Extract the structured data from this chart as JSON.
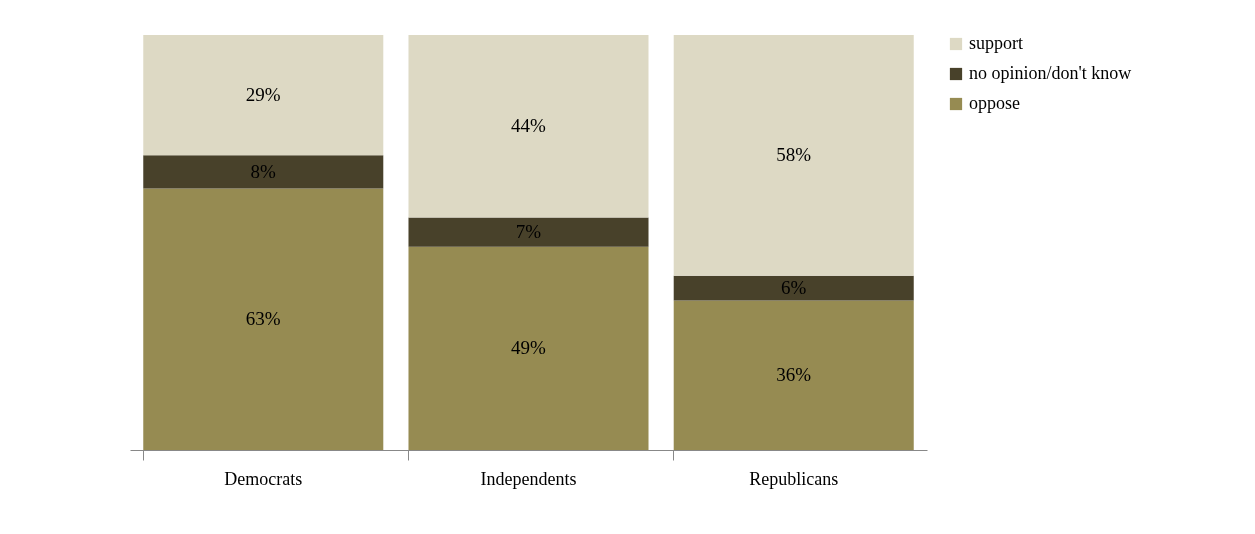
{
  "chart_data": {
    "type": "bar",
    "stacked": true,
    "categories": [
      "Democrats",
      "Independents",
      "Republicans"
    ],
    "series": [
      {
        "name": "oppose",
        "color": "#968b52",
        "values": [
          63,
          49,
          36
        ],
        "value_labels": [
          "63%",
          "49%",
          "36%"
        ]
      },
      {
        "name": "no opinion/don't know",
        "color": "#48412a",
        "values": [
          8,
          7,
          6
        ],
        "value_labels": [
          "8%",
          "7%",
          "6%"
        ]
      },
      {
        "name": "support",
        "color": "#ddd9c4",
        "values": [
          29,
          44,
          58
        ],
        "value_labels": [
          "29%",
          "44%",
          "58%"
        ]
      }
    ],
    "legend": "right"
  }
}
